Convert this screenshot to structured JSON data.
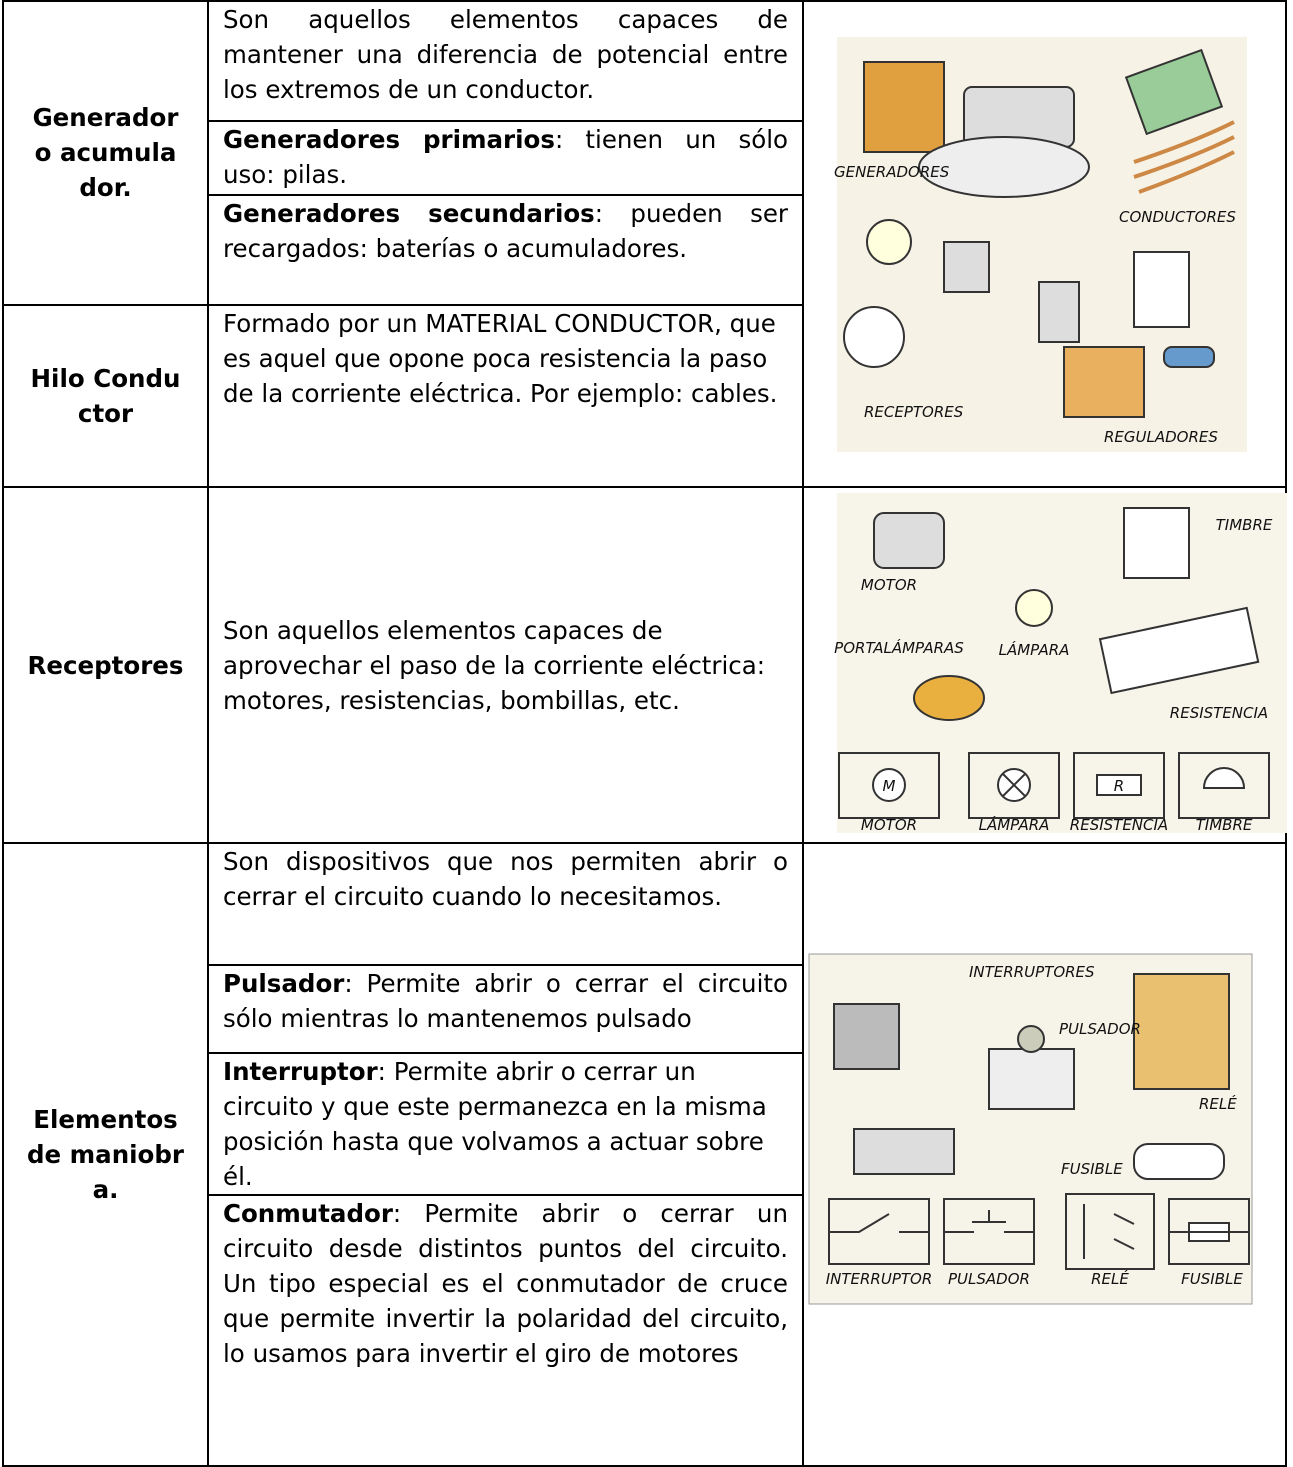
{
  "rows": [
    {
      "label": "Generador o acumulador.",
      "items": [
        {
          "text": "Son aquellos elementos capaces de mantener una diferencia de potencial entre los extremos de un conductor."
        },
        {
          "term": "Generadores primarios",
          "text": ": tienen un sólo uso: pilas."
        },
        {
          "term": "Generadores secundarios",
          "text": ": pueden ser recargados: baterías o acumuladores."
        }
      ]
    },
    {
      "label": "Hilo Conductor",
      "items": [
        {
          "text": "Formado por un MATERIAL CONDUCTOR, que es aquel que opone poca resistencia la paso de la corriente eléctrica. Por ejemplo: cables."
        }
      ]
    },
    {
      "label": "Receptores",
      "items": [
        {
          "text": "Son aquellos elementos capaces de aprovechar el paso de la corriente eléctrica: motores, resistencias, bombillas, etc."
        }
      ]
    },
    {
      "label": "Elementos de maniobra.",
      "items": [
        {
          "text": "Son dispositivos que nos permiten abrir o cerrar el circuito cuando lo necesitamos."
        },
        {
          "term": "Pulsador",
          "text": ": Permite abrir o cerrar el circuito sólo mientras lo mantenemos pulsado"
        },
        {
          "term": "Interruptor",
          "text": ": Permite abrir o cerrar un circuito y que este permanezca en la misma posición hasta que volvamos a actuar sobre él."
        },
        {
          "term": "Conmutador",
          "text": ": Permite abrir o cerrar un circuito desde distintos puntos del circuito. Un tipo especial es el conmutador de cruce que permite invertir la polaridad del circuito, lo usamos para invertir el giro de motores"
        }
      ]
    }
  ],
  "figures": [
    {
      "labels": [
        "GENERADORES",
        "CONDUCTORES",
        "RECEPTORES",
        "REGULADORES"
      ]
    },
    {
      "labels": [
        "TIMBRE",
        "MOTOR",
        "PORTALÁMPARAS",
        "LÁMPARA",
        "RESISTENCIA"
      ],
      "symbols": [
        "M",
        "R"
      ],
      "captions": [
        "MOTOR",
        "LÁMPARA",
        "RESISTENCIA",
        "TIMBRE"
      ]
    },
    {
      "labels": [
        "INTERRUPTORES",
        "PULSADOR",
        "RELÉ",
        "FUSIBLE"
      ],
      "captions": [
        "INTERRUPTOR",
        "PULSADOR",
        "RELÉ",
        "FUSIBLE"
      ]
    }
  ]
}
